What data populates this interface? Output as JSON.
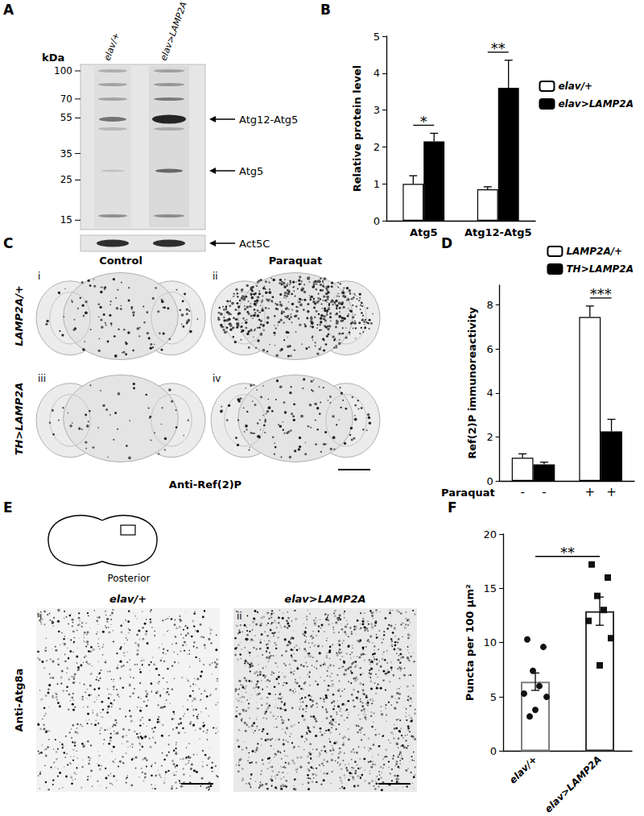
{
  "panel_labels": [
    "A",
    "B",
    "C",
    "D",
    "E",
    "F"
  ],
  "blot": {
    "unit": "kDa",
    "markers": [
      100,
      70,
      55,
      35,
      25,
      15
    ],
    "lanes": [
      "elav/+",
      "elav>LAMP2A"
    ],
    "bands": [
      "Atg12-Atg5",
      "Atg5"
    ],
    "loading_control": "Act5C"
  },
  "micrographs_c": {
    "columns": [
      "Control",
      "Paraquat"
    ],
    "rows": [
      "LAMP2A/+",
      "TH>LAMP2A"
    ],
    "sublabels": [
      "i",
      "ii",
      "iii",
      "iv"
    ],
    "stain": "Anti-Ref(2)P"
  },
  "micrographs_e": {
    "schematic_label": "Posterior",
    "columns": [
      "elav/+",
      "elav>LAMP2A"
    ],
    "sublabels": [
      "i",
      "ii"
    ],
    "stain": "Anti-Atg8a"
  },
  "chart_data": [
    {
      "type": "bar",
      "ylabel": "Relative protein level",
      "categories": [
        "Atg5",
        "Atg12-Atg5"
      ],
      "series": [
        {
          "name": "elav/+",
          "color": "#ffffff",
          "values": [
            1.0,
            0.85
          ],
          "errors": [
            0.22,
            0.07
          ]
        },
        {
          "name": "elav>LAMP2A",
          "color": "#000000",
          "values": [
            2.15,
            3.6
          ],
          "errors": [
            0.22,
            0.75
          ]
        }
      ],
      "ylim": [
        0,
        5
      ],
      "yticks": [
        0,
        1,
        2,
        3,
        4,
        5
      ],
      "legend": "upper right",
      "annotations": [
        {
          "text": "*",
          "category": "Atg5"
        },
        {
          "text": "**",
          "category": "Atg12-Atg5"
        }
      ]
    },
    {
      "type": "bar",
      "ylabel": "Ref(2)P immunoreactivity",
      "xlabel": "Paraquat",
      "categories": [
        "-",
        "+"
      ],
      "series": [
        {
          "name": "LAMP2A/+",
          "color": "#ffffff",
          "values": [
            1.05,
            7.45
          ],
          "errors": [
            0.18,
            0.5
          ]
        },
        {
          "name": "TH>LAMP2A",
          "color": "#000000",
          "values": [
            0.75,
            2.25
          ],
          "errors": [
            0.1,
            0.55
          ]
        }
      ],
      "ylim": [
        0,
        8.9
      ],
      "yticks": [
        0,
        2,
        4,
        6,
        8
      ],
      "legend": "upper right",
      "annotations": [
        {
          "text": "***",
          "category": "+"
        }
      ]
    },
    {
      "type": "bar",
      "ylabel": "Puncta per 100 µm²",
      "categories": [
        "elav/+",
        "elav>LAMP2A"
      ],
      "values": [
        6.4,
        12.9
      ],
      "errors": [
        0.8,
        1.3
      ],
      "colors": [
        "#808080",
        "#333333"
      ],
      "points": [
        {
          "marker": "circle",
          "values": [
            10.3,
            9.6,
            7.4,
            6.0,
            5.3,
            5.0,
            3.8,
            3.2
          ]
        },
        {
          "marker": "square",
          "values": [
            17.2,
            16.0,
            14.3,
            13.0,
            12.0,
            10.4,
            7.9
          ]
        }
      ],
      "ylim": [
        0,
        20
      ],
      "yticks": [
        0,
        5,
        10,
        15,
        20
      ],
      "annotations": [
        {
          "text": "**",
          "categories": [
            "elav/+",
            "elav>LAMP2A"
          ]
        }
      ]
    }
  ]
}
